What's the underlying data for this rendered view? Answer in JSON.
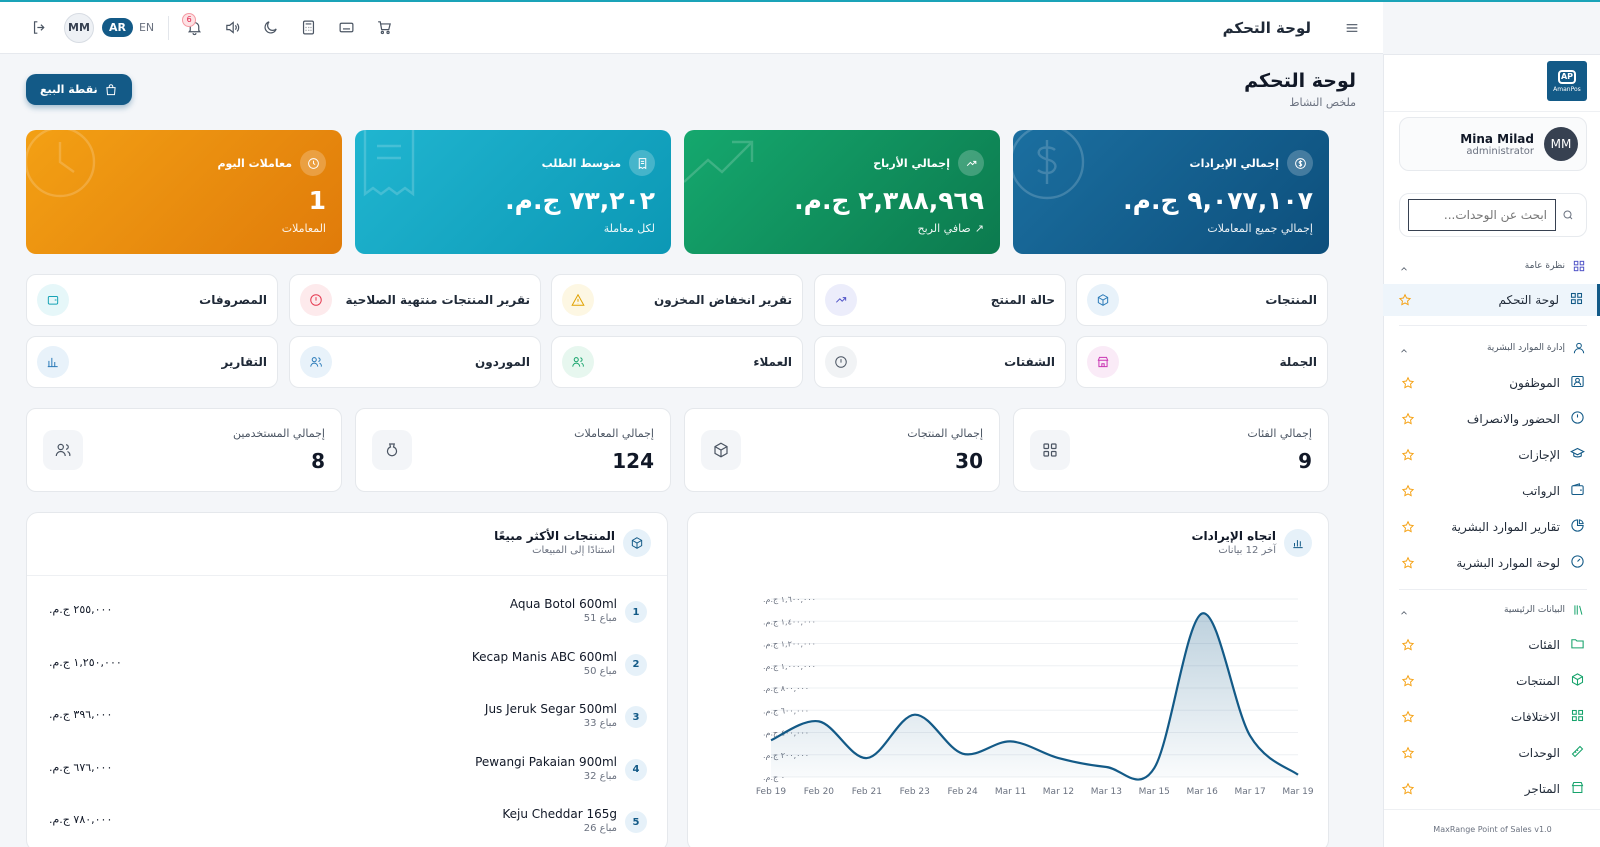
{
  "header": {
    "title": "لوحة التحكم",
    "user_initials": "MM",
    "lang_ar": "AR",
    "lang_en": "EN",
    "notifications_count": "6"
  },
  "sidebar": {
    "logo_text": "AmanPos",
    "user": {
      "name": "Mina Milad",
      "role": "administrator",
      "initials": "MM"
    },
    "search_placeholder": "ابحث عن الوحدات...",
    "sections": [
      {
        "label": "نظرة عامة",
        "items": [
          {
            "label": "لوحة التحكم",
            "active": true
          }
        ]
      },
      {
        "label": "إدارة الموارد البشرية",
        "items": [
          {
            "label": "الموظفون"
          },
          {
            "label": "الحضور والانصراف"
          },
          {
            "label": "الإجازات"
          },
          {
            "label": "الرواتب"
          },
          {
            "label": "تقارير الموارد البشرية"
          },
          {
            "label": "لوحة الموارد البشرية"
          }
        ]
      },
      {
        "label": "البيانات الرئيسية",
        "items": [
          {
            "label": "الفئات"
          },
          {
            "label": "المنتجات"
          },
          {
            "label": "الاختلافات"
          },
          {
            "label": "الوحدات"
          },
          {
            "label": "المتاجر"
          }
        ]
      }
    ],
    "footer": "MaxRange Point of Sales v1.0"
  },
  "page": {
    "title": "لوحة التحكم",
    "subtitle": "ملخص النشاط",
    "pos_button": "نقطة البيع"
  },
  "stat_cards": [
    {
      "title": "إجمالي الإيرادات",
      "value": "٩,٠٧٧,١٠٧ ج.م.",
      "sub": "إجمالي جميع المعاملات",
      "color_from": "#1b6fa0",
      "color_to": "#0d4f7c"
    },
    {
      "title": "إجمالي الأرباح",
      "value": "٢,٣٨٨,٩٦٩ ج.م.",
      "sub": "صافي الربح",
      "color_from": "#15a86e",
      "color_to": "#0c7a4e"
    },
    {
      "title": "متوسط الطلب",
      "value": "٧٣,٢٠٢ ج.م.",
      "sub": "لكل معاملة",
      "color_from": "#20b5d0",
      "color_to": "#0c98b5"
    },
    {
      "title": "معاملات اليوم",
      "value": "1",
      "sub": "المعاملات",
      "color_from": "#f3a014",
      "color_to": "#e07b0a"
    }
  ],
  "quick_links": [
    {
      "label": "المنتجات",
      "icon": "box-icon",
      "color": "#2a7ab8",
      "bg": "#e8f2fa"
    },
    {
      "label": "حالة المنتج",
      "icon": "trend-icon",
      "color": "#4f52c7",
      "bg": "#ecedfb"
    },
    {
      "label": "تقرير انخفاض المخزون",
      "icon": "warning-icon",
      "color": "#e0a100",
      "bg": "#fdf7e3"
    },
    {
      "label": "تقرير المنتجات منتهية الصلاحية",
      "icon": "alert-icon",
      "color": "#e53950",
      "bg": "#fdeaec"
    },
    {
      "label": "المصروفات",
      "icon": "wallet-icon",
      "color": "#16a3b5",
      "bg": "#e6f7f9"
    },
    {
      "label": "الجملة",
      "icon": "store-icon",
      "color": "#c935b3",
      "bg": "#faebf7"
    },
    {
      "label": "الشفتات",
      "icon": "clock-icon",
      "color": "#4b5563",
      "bg": "#f1f3f5"
    },
    {
      "label": "العملاء",
      "icon": "users-icon",
      "color": "#16a36b",
      "bg": "#e7f7ef"
    },
    {
      "label": "الموردون",
      "icon": "people-icon",
      "color": "#2a7ab8",
      "bg": "#e8f2fa"
    },
    {
      "label": "التقارير",
      "icon": "bar-icon",
      "color": "#2a7ab8",
      "bg": "#e8f2fa"
    }
  ],
  "mini_stats": [
    {
      "label": "إجمالي الفئات",
      "value": "9",
      "icon": "grid-icon"
    },
    {
      "label": "إجمالي المنتجات",
      "value": "30",
      "icon": "cube-icon"
    },
    {
      "label": "إجمالي المعاملات",
      "value": "124",
      "icon": "bag-icon"
    },
    {
      "label": "إجمالي المستخدمين",
      "value": "8",
      "icon": "users-icon"
    }
  ],
  "revenue_panel": {
    "title": "اتجاه الإيرادات",
    "subtitle": "آخر 12 بيانات"
  },
  "top_products": {
    "title": "المنتجات الأكثر مبيعًا",
    "subtitle": "استنادًا إلى المبيعات",
    "items": [
      {
        "rank": "1",
        "name": "Aqua Botol 600ml",
        "sold": "51 مباع",
        "amount": "٢٥٥,٠٠٠ ج.م."
      },
      {
        "rank": "2",
        "name": "Kecap Manis ABC 600ml",
        "sold": "50 مباع",
        "amount": "١,٢٥٠,٠٠٠ ج.م."
      },
      {
        "rank": "3",
        "name": "Jus Jeruk Segar 500ml",
        "sold": "33 مباع",
        "amount": "٣٩٦,٠٠٠ ج.م."
      },
      {
        "rank": "4",
        "name": "Pewangi Pakaian 900ml",
        "sold": "32 مباع",
        "amount": "٦٧٦,٠٠٠ ج.م."
      },
      {
        "rank": "5",
        "name": "Keju Cheddar 165g",
        "sold": "26 مباع",
        "amount": "٧٨٠,٠٠٠ ج.م."
      }
    ]
  },
  "chart_data": {
    "type": "area",
    "title": "اتجاه الإيرادات",
    "categories": [
      "Feb 19",
      "Feb 20",
      "Feb 21",
      "Feb 23",
      "Feb 24",
      "Mar 11",
      "Mar 12",
      "Mar 13",
      "Mar 15",
      "Mar 16",
      "Mar 17",
      "Mar 19"
    ],
    "values": [
      330000,
      500000,
      170000,
      560000,
      210000,
      320000,
      170000,
      90000,
      80000,
      1470000,
      370000,
      20000
    ],
    "ylim": [
      0,
      1600000
    ],
    "yticks": [
      "٠ ج.م.",
      "٢٠٠,٠٠٠ ج.م.",
      "٤٠٠,٠٠٠ ج.م.",
      "٦٠٠,٠٠٠ ج.م.",
      "٨٠٠,٠٠٠ ج.م.",
      "١,٠٠٠,٠٠٠ ج.م.",
      "١,٢٠٠,٠٠٠ ج.م.",
      "١,٤٠٠,٠٠٠ ج.م.",
      "١,٦٠٠,٠٠٠ ج.م."
    ],
    "line_color": "#135a87",
    "grid": true
  }
}
